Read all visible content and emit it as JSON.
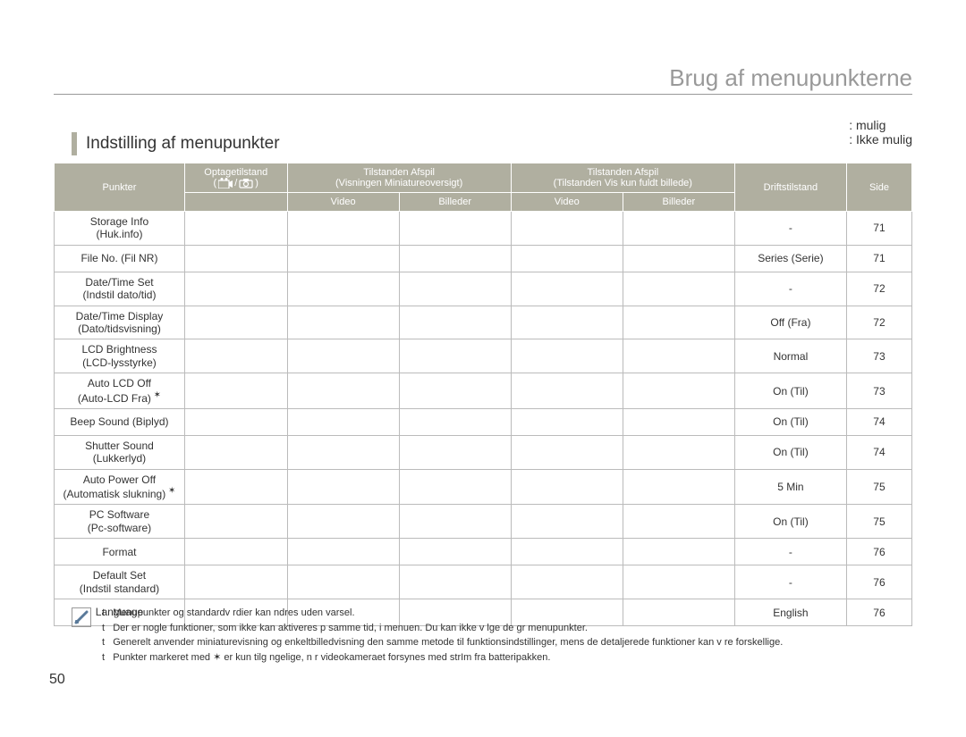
{
  "page": {
    "title": "Brug af menupunkterne",
    "section_title": "Indstilling af menupunkter",
    "page_number": "50"
  },
  "legend": {
    "possible": ": mulig",
    "not_possible": ": Ikke mulig"
  },
  "colors": {
    "header_bg": "#b0afa0",
    "header_text": "#ffffff",
    "section_bar": "#b0afa0",
    "title_color": "#999999",
    "border": "#bbbbbb"
  },
  "table": {
    "head": {
      "col_items": "Punkter",
      "col_record": "Optagetilstand",
      "col_play1_top": "Tilstanden Afspil",
      "col_play1_sub": "(Visningen Miniatureoversigt)",
      "col_play2_top": "Tilstanden Afspil",
      "col_play2_sub": "(Tilstanden Vis kun fuldt billede)",
      "col_default": "Driftstilstand",
      "col_page": "Side",
      "sub_video": "Video",
      "sub_images": "Billeder"
    },
    "rows": [
      {
        "name_l1": "Storage Info",
        "name_l2": "(Huk.info)",
        "star": false,
        "default": "-",
        "page": "71"
      },
      {
        "name_l1": "File No. (Fil NR)",
        "name_l2": "",
        "star": false,
        "default": "Series (Serie)",
        "page": "71"
      },
      {
        "name_l1": "Date/Time Set",
        "name_l2": "(Indstil dato/tid)",
        "star": false,
        "default": "-",
        "page": "72"
      },
      {
        "name_l1": "Date/Time Display",
        "name_l2": "(Dato/tidsvisning)",
        "star": false,
        "default": "Off (Fra)",
        "page": "72"
      },
      {
        "name_l1": "LCD Brightness",
        "name_l2": "(LCD-lysstyrke)",
        "star": false,
        "default": "Normal",
        "page": "73"
      },
      {
        "name_l1": "Auto LCD Off",
        "name_l2": "(Auto-LCD Fra)",
        "star": true,
        "default": "On (Til)",
        "page": "73"
      },
      {
        "name_l1": "Beep Sound (Biplyd)",
        "name_l2": "",
        "star": false,
        "default": "On (Til)",
        "page": "74"
      },
      {
        "name_l1": "Shutter Sound",
        "name_l2": "(Lukkerlyd)",
        "star": false,
        "default": "On (Til)",
        "page": "74"
      },
      {
        "name_l1": "Auto Power Off",
        "name_l2": "(Automatisk slukning)",
        "star": true,
        "default": "5 Min",
        "page": "75"
      },
      {
        "name_l1": "PC Software",
        "name_l2": "(Pc-software)",
        "star": false,
        "default": "On (Til)",
        "page": "75"
      },
      {
        "name_l1": "Format",
        "name_l2": "",
        "star": false,
        "default": "-",
        "page": "76"
      },
      {
        "name_l1": "Default Set",
        "name_l2": "(Indstil standard)",
        "star": false,
        "default": "-",
        "page": "76"
      },
      {
        "name_l1": "Language",
        "name_l2": "",
        "star": false,
        "default": "English",
        "page": "76"
      }
    ]
  },
  "notes": [
    "Menupunkter og standardv rdier kan  ndres uden varsel.",
    "Der er nogle funktioner, som ikke kan aktiveres p  samme tid, i menuen. Du kan ikke v lge de gr  menupunkter.",
    "Generelt anvender miniaturevisning og enkeltbilledvisning den samme metode til funktionsindstillinger, mens de detaljerede funktioner kan v re forskellige.",
    "Punkter markeret med ✶ er kun tilg ngelige, n r videokameraet forsynes med strIm fra batteripakken."
  ]
}
